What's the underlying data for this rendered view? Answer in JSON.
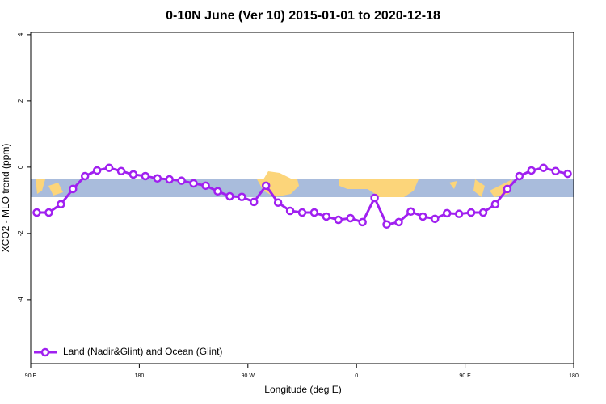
{
  "chart_data": {
    "type": "line",
    "title": "0-10N June (Ver 10)   2015-01-01 to 2020-12-18",
    "x_label": "Longitude (deg E)",
    "y_label": "XCO2 - MLO trend (ppm)",
    "xlim": [
      90,
      540
    ],
    "ylim": [
      -5.93,
      4.07
    ],
    "xticks": [
      {
        "value": 90,
        "label": "90 E"
      },
      {
        "value": 180,
        "label": "180"
      },
      {
        "value": 270,
        "label": "90 W"
      },
      {
        "value": 360,
        "label": "0"
      },
      {
        "value": 450,
        "label": "90 E"
      },
      {
        "value": 540,
        "label": "180"
      }
    ],
    "yticks": [
      -4,
      -2,
      0,
      2,
      4
    ],
    "legend": "bottom-left",
    "x": [
      95,
      105,
      115,
      125,
      135,
      145,
      155,
      165,
      175,
      185,
      195,
      205,
      215,
      225,
      235,
      245,
      255,
      265,
      275,
      285,
      295,
      305,
      315,
      325,
      335,
      345,
      355,
      365,
      375,
      385,
      395,
      405,
      415,
      425,
      435,
      445,
      455,
      465,
      475,
      485,
      495,
      505,
      515,
      525,
      535
    ],
    "series": [
      {
        "name": "Land (Nadir&Glint) and Ocean (Glint)",
        "color": "#a020f0",
        "values": [
          -1.37,
          -1.37,
          -1.12,
          -0.66,
          -0.27,
          -0.1,
          -0.02,
          -0.12,
          -0.22,
          -0.27,
          -0.34,
          -0.37,
          -0.41,
          -0.49,
          -0.56,
          -0.73,
          -0.88,
          -0.9,
          -1.05,
          -0.56,
          -1.07,
          -1.32,
          -1.37,
          -1.37,
          -1.49,
          -1.59,
          -1.54,
          -1.66,
          -0.93,
          -1.73,
          -1.66,
          -1.34,
          -1.49,
          -1.56,
          -1.39,
          -1.41,
          -1.37,
          -1.37,
          -1.12,
          -0.66,
          -0.27,
          -0.1,
          -0.02,
          -0.12,
          -0.2
        ]
      }
    ]
  }
}
